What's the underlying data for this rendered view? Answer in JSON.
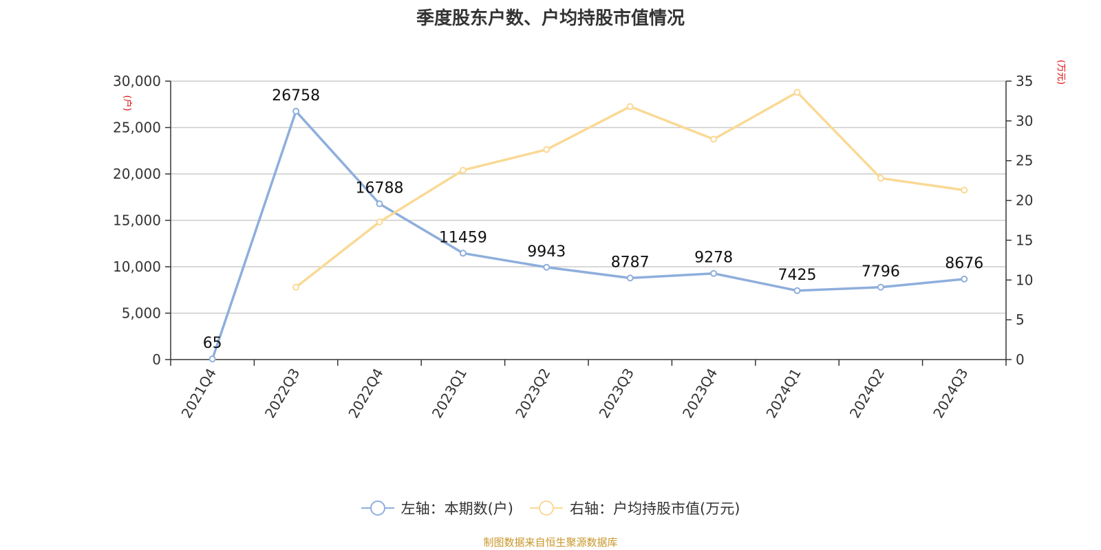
{
  "chart_data": {
    "type": "line",
    "title": "季度股东户数、户均持股市值情况",
    "categories": [
      "2021Q4",
      "2022Q3",
      "2022Q4",
      "2023Q1",
      "2023Q2",
      "2023Q3",
      "2023Q4",
      "2024Q1",
      "2024Q2",
      "2024Q3"
    ],
    "series": [
      {
        "name": "左轴：本期数(户)",
        "axis": "left",
        "color": "#8eaedc",
        "values": [
          65,
          26758,
          16788,
          11459,
          9943,
          8787,
          9278,
          7425,
          7796,
          8676
        ]
      },
      {
        "name": "右轴：户均持股市值(万元)",
        "axis": "right",
        "color": "#fad994",
        "values": [
          null,
          9.1,
          17.3,
          23.8,
          26.4,
          31.8,
          27.7,
          33.6,
          22.8,
          21.3
        ]
      }
    ],
    "left_axis": {
      "unit": "(户)",
      "ylim": [
        0,
        30000
      ],
      "ticks": [
        "0",
        "5,000",
        "10,000",
        "15,000",
        "20,000",
        "25,000",
        "30,000"
      ]
    },
    "right_axis": {
      "unit": "(万元)",
      "ylim": [
        0,
        35
      ],
      "ticks": [
        "0",
        "5",
        "10",
        "15",
        "20",
        "25",
        "30",
        "35"
      ]
    },
    "grid": true,
    "legend_position": "bottom"
  },
  "source": "制图数据来自恒生聚源数据库"
}
